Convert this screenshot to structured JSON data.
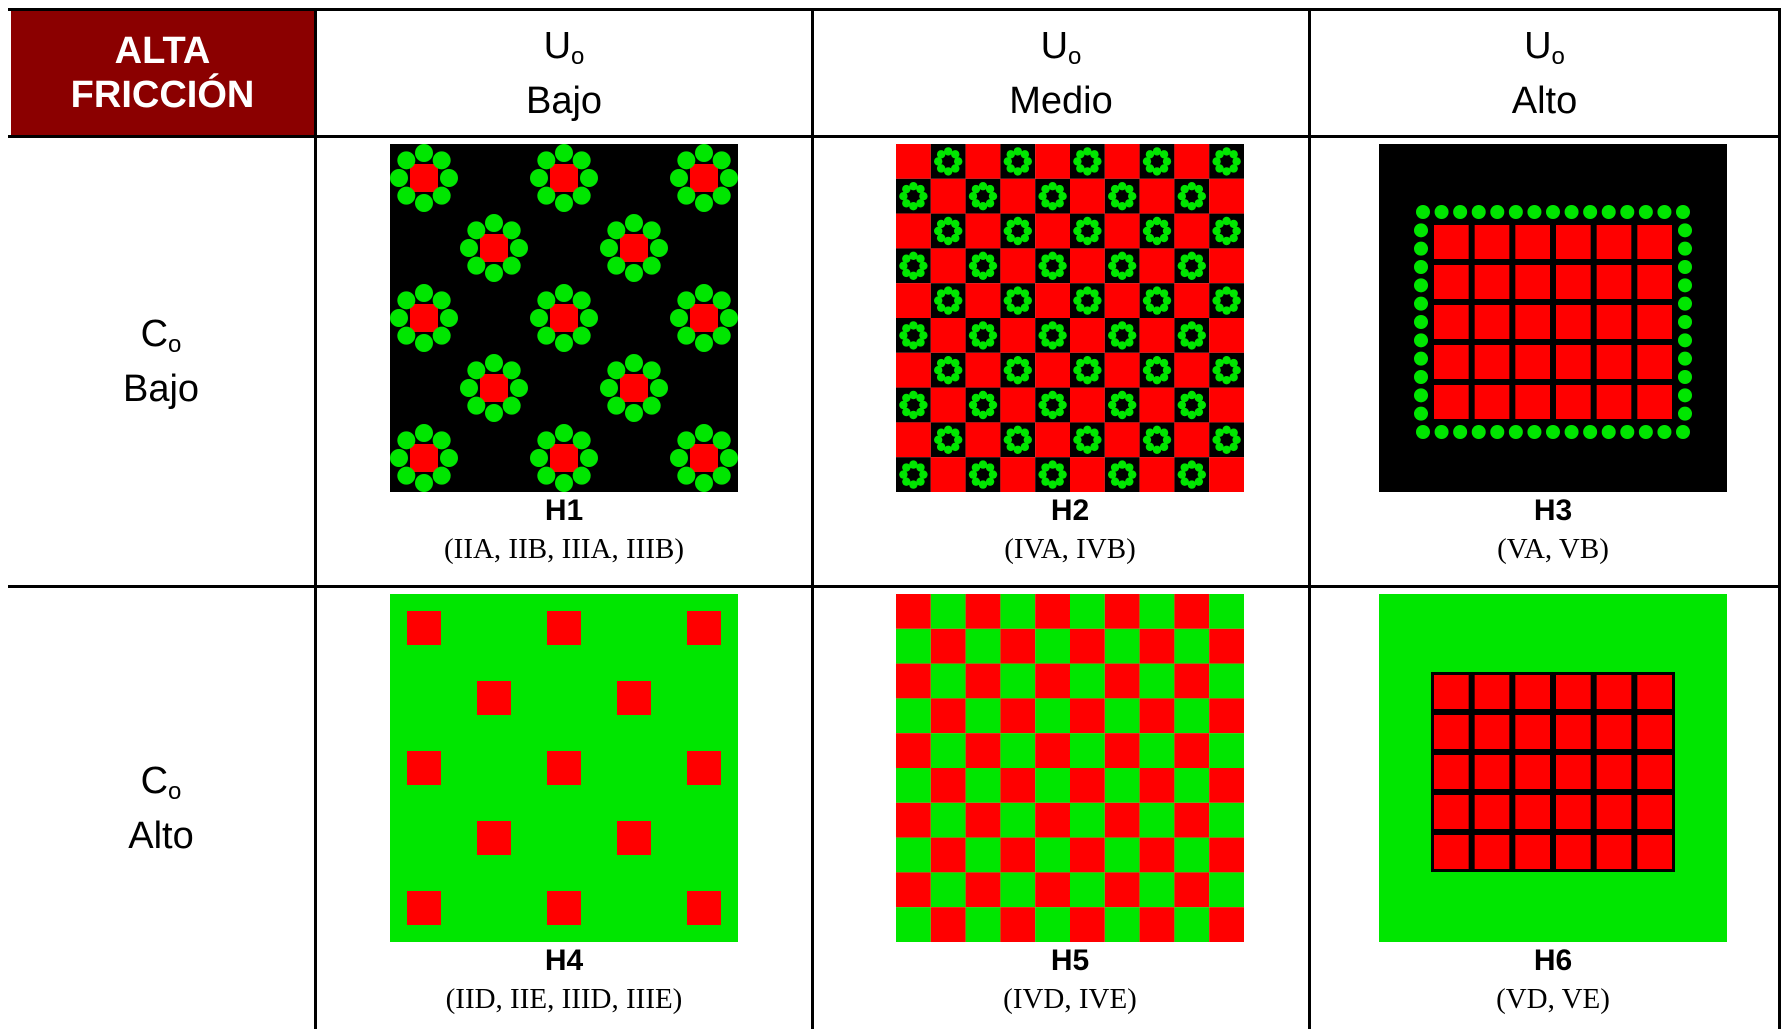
{
  "table": {
    "corner_label": [
      "ALTA",
      "FRICCIÓN"
    ],
    "columns": [
      {
        "symbol": "U",
        "subscript": "o",
        "level": "Bajo"
      },
      {
        "symbol": "U",
        "subscript": "o",
        "level": "Medio"
      },
      {
        "symbol": "U",
        "subscript": "o",
        "level": "Alto"
      }
    ],
    "rows": [
      {
        "symbol": "C",
        "subscript": "o",
        "level": "Bajo"
      },
      {
        "symbol": "C",
        "subscript": "o",
        "level": "Alto"
      }
    ],
    "cells": [
      {
        "code": "H1",
        "cases": "(IIA, IIB, IIIA, IIIB)"
      },
      {
        "code": "H2",
        "cases": "(IVA, IVB)"
      },
      {
        "code": "H3",
        "cases": "(VA, VB)"
      },
      {
        "code": "H4",
        "cases": "(IID, IIE, IIID, IIIE)"
      },
      {
        "code": "H5",
        "cases": "(IVD, IVE)"
      },
      {
        "code": "H6",
        "cases": "(VD, VE)"
      }
    ]
  },
  "colors": {
    "corner_bg": "#8b0000",
    "corner_text": "#ffffff",
    "red": "#ff0000",
    "green": "#00e600",
    "black": "#000000",
    "grid_line": "#000000"
  }
}
